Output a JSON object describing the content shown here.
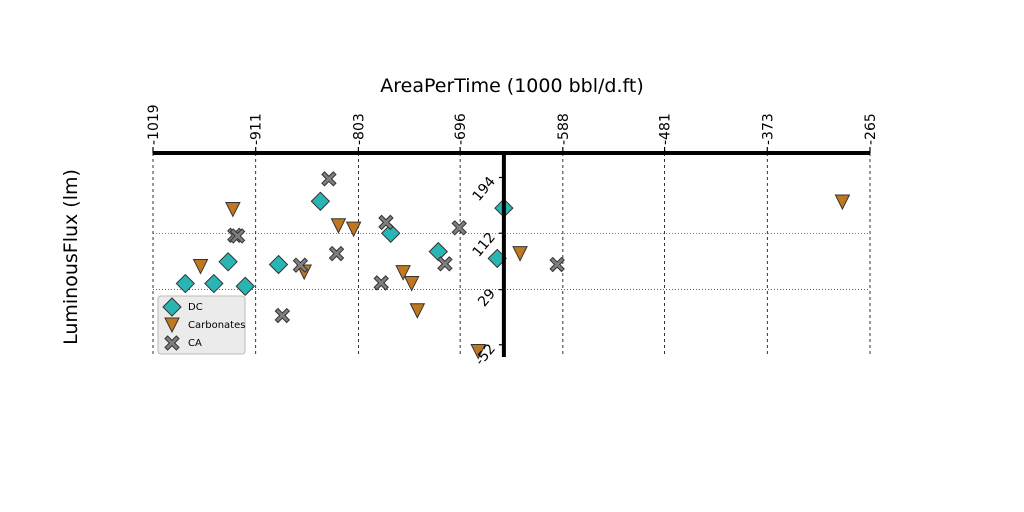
{
  "chart_data": {
    "type": "scatter",
    "title": "",
    "xlabel": "AreaPerTime (1000 bbl/d.ft)",
    "ylabel": "LuminousFlux (lm)",
    "xlim": [
      -1019,
      -265
    ],
    "ylim": [
      -70,
      230
    ],
    "x_ticks": [
      "-1019",
      "-911",
      "-803",
      "-696",
      "-588",
      "-481",
      "-373",
      "-265"
    ],
    "x_tick_values": [
      -1019,
      -911,
      -803,
      -696,
      -588,
      -481,
      -373,
      -265
    ],
    "y_ticks": [
      "-52",
      "29",
      "112",
      "194"
    ],
    "y_tick_values": [
      -52,
      29,
      112,
      194
    ],
    "x_axis_position": "top",
    "y_axis_crosses_at_x": -650,
    "grid": "dashed vertical, dotted horizontal",
    "legend_position": "lower-left",
    "series": [
      {
        "name": "DC",
        "marker": "diamond",
        "color": "#2ab5b5",
        "points": [
          [
            -985,
            38
          ],
          [
            -955,
            38
          ],
          [
            -940,
            70
          ],
          [
            -922,
            34
          ],
          [
            -887,
            66
          ],
          [
            -843,
            159
          ],
          [
            -769,
            112
          ],
          [
            -719,
            85
          ],
          [
            -657,
            75
          ],
          [
            -650,
            149
          ]
        ]
      },
      {
        "name": "Carbonates",
        "marker": "triangle-down",
        "color": "#c07820",
        "points": [
          [
            -969,
            63
          ],
          [
            -935,
            147
          ],
          [
            -860,
            55
          ],
          [
            -824,
            123
          ],
          [
            -808,
            118
          ],
          [
            -756,
            54
          ],
          [
            -747,
            38
          ],
          [
            -741,
            -2
          ],
          [
            -677,
            -62
          ],
          [
            -633,
            82
          ],
          [
            -294,
            158
          ]
        ]
      },
      {
        "name": "CA",
        "marker": "x",
        "color": "#7f7f7f",
        "points": [
          [
            -933,
            109
          ],
          [
            -930,
            108
          ],
          [
            -883,
            -9
          ],
          [
            -864,
            65
          ],
          [
            -834,
            192
          ],
          [
            -826,
            82
          ],
          [
            -779,
            39
          ],
          [
            -774,
            128
          ],
          [
            -712,
            67
          ],
          [
            -697,
            120
          ],
          [
            -594,
            66
          ]
        ]
      }
    ]
  }
}
